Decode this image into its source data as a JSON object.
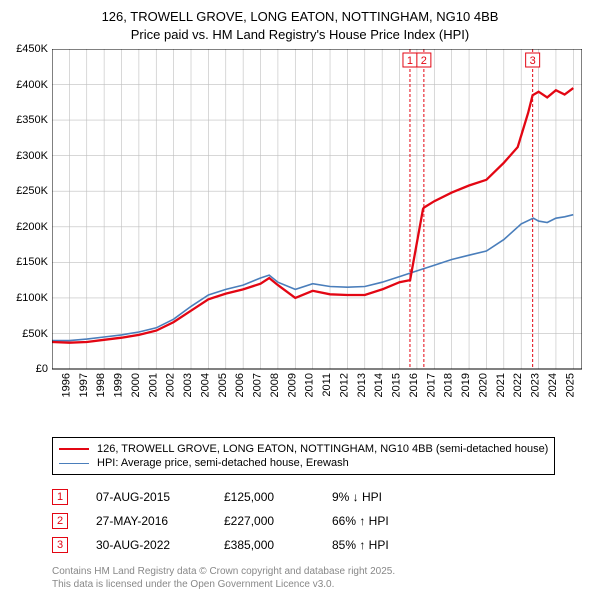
{
  "title_line1": "126, TROWELL GROVE, LONG EATON, NOTTINGHAM, NG10 4BB",
  "title_line2": "Price paid vs. HM Land Registry's House Price Index (HPI)",
  "chart": {
    "type": "line",
    "background_color": "#ffffff",
    "plot_border_color": "#000000",
    "grid_color": "#bfbfbf",
    "axis_font_size": 11,
    "x_min": 1995,
    "x_max": 2025.5,
    "x_ticks": [
      1995,
      1996,
      1997,
      1998,
      1999,
      2000,
      2001,
      2002,
      2003,
      2004,
      2005,
      2006,
      2007,
      2008,
      2009,
      2010,
      2011,
      2012,
      2013,
      2014,
      2015,
      2016,
      2017,
      2018,
      2019,
      2020,
      2021,
      2022,
      2023,
      2024,
      2025
    ],
    "y_min": 0,
    "y_max": 450000,
    "y_ticks": [
      0,
      50000,
      100000,
      150000,
      200000,
      250000,
      300000,
      350000,
      400000,
      450000
    ],
    "y_tick_labels": [
      "£0",
      "£50K",
      "£100K",
      "£150K",
      "£200K",
      "£250K",
      "£300K",
      "£350K",
      "£400K",
      "£450K"
    ],
    "series": [
      {
        "name": "property",
        "color": "#e30613",
        "width": 2.3,
        "data": [
          [
            1995,
            38000
          ],
          [
            1996,
            37000
          ],
          [
            1997,
            38000
          ],
          [
            1998,
            41000
          ],
          [
            1999,
            44000
          ],
          [
            2000,
            48000
          ],
          [
            2001,
            54000
          ],
          [
            2002,
            66000
          ],
          [
            2003,
            82000
          ],
          [
            2004,
            98000
          ],
          [
            2005,
            106000
          ],
          [
            2006,
            112000
          ],
          [
            2007,
            120000
          ],
          [
            2007.5,
            128000
          ],
          [
            2008,
            118000
          ],
          [
            2009,
            100000
          ],
          [
            2010,
            110000
          ],
          [
            2011,
            105000
          ],
          [
            2012,
            104000
          ],
          [
            2013,
            104000
          ],
          [
            2014,
            112000
          ],
          [
            2015,
            122000
          ],
          [
            2015.6,
            125000
          ],
          [
            2015.61,
            125000
          ],
          [
            2016.35,
            225000
          ],
          [
            2016.4,
            227000
          ],
          [
            2017,
            236000
          ],
          [
            2018,
            248000
          ],
          [
            2019,
            258000
          ],
          [
            2020,
            266000
          ],
          [
            2021,
            290000
          ],
          [
            2021.8,
            312000
          ],
          [
            2022.4,
            360000
          ],
          [
            2022.66,
            385000
          ],
          [
            2023,
            390000
          ],
          [
            2023.5,
            382000
          ],
          [
            2024,
            392000
          ],
          [
            2024.5,
            386000
          ],
          [
            2025,
            395000
          ]
        ]
      },
      {
        "name": "hpi",
        "color": "#4a7ebb",
        "width": 1.6,
        "data": [
          [
            1995,
            40000
          ],
          [
            1996,
            40000
          ],
          [
            1997,
            42000
          ],
          [
            1998,
            45000
          ],
          [
            1999,
            48000
          ],
          [
            2000,
            52000
          ],
          [
            2001,
            58000
          ],
          [
            2002,
            70000
          ],
          [
            2003,
            88000
          ],
          [
            2004,
            104000
          ],
          [
            2005,
            112000
          ],
          [
            2006,
            118000
          ],
          [
            2007,
            128000
          ],
          [
            2007.5,
            132000
          ],
          [
            2008,
            122000
          ],
          [
            2009,
            112000
          ],
          [
            2010,
            120000
          ],
          [
            2011,
            116000
          ],
          [
            2012,
            115000
          ],
          [
            2013,
            116000
          ],
          [
            2014,
            122000
          ],
          [
            2015,
            130000
          ],
          [
            2016,
            138000
          ],
          [
            2017,
            146000
          ],
          [
            2018,
            154000
          ],
          [
            2019,
            160000
          ],
          [
            2020,
            166000
          ],
          [
            2021,
            182000
          ],
          [
            2022,
            204000
          ],
          [
            2022.7,
            212000
          ],
          [
            2023,
            208000
          ],
          [
            2023.5,
            206000
          ],
          [
            2024,
            212000
          ],
          [
            2024.5,
            214000
          ],
          [
            2025,
            217000
          ]
        ]
      }
    ],
    "event_lines": [
      {
        "id": "1",
        "x": 2015.6,
        "color": "#e30613"
      },
      {
        "id": "2",
        "x": 2016.4,
        "color": "#e30613"
      },
      {
        "id": "3",
        "x": 2022.66,
        "color": "#e30613"
      }
    ]
  },
  "legend": {
    "items": [
      {
        "color": "#e30613",
        "thick": 2.3,
        "label": "126, TROWELL GROVE, LONG EATON, NOTTINGHAM, NG10 4BB (semi-detached house)"
      },
      {
        "color": "#4a7ebb",
        "thick": 1.6,
        "label": "HPI: Average price, semi-detached house, Erewash"
      }
    ]
  },
  "markers_table": [
    {
      "id": "1",
      "date": "07-AUG-2015",
      "price": "£125,000",
      "pct": "9% ↓ HPI",
      "color": "#e30613"
    },
    {
      "id": "2",
      "date": "27-MAY-2016",
      "price": "£227,000",
      "pct": "66% ↑ HPI",
      "color": "#e30613"
    },
    {
      "id": "3",
      "date": "30-AUG-2022",
      "price": "£385,000",
      "pct": "85% ↑ HPI",
      "color": "#e30613"
    }
  ],
  "footer": {
    "line1": "Contains HM Land Registry data © Crown copyright and database right 2025.",
    "line2": "This data is licensed under the Open Government Licence v3.0."
  }
}
